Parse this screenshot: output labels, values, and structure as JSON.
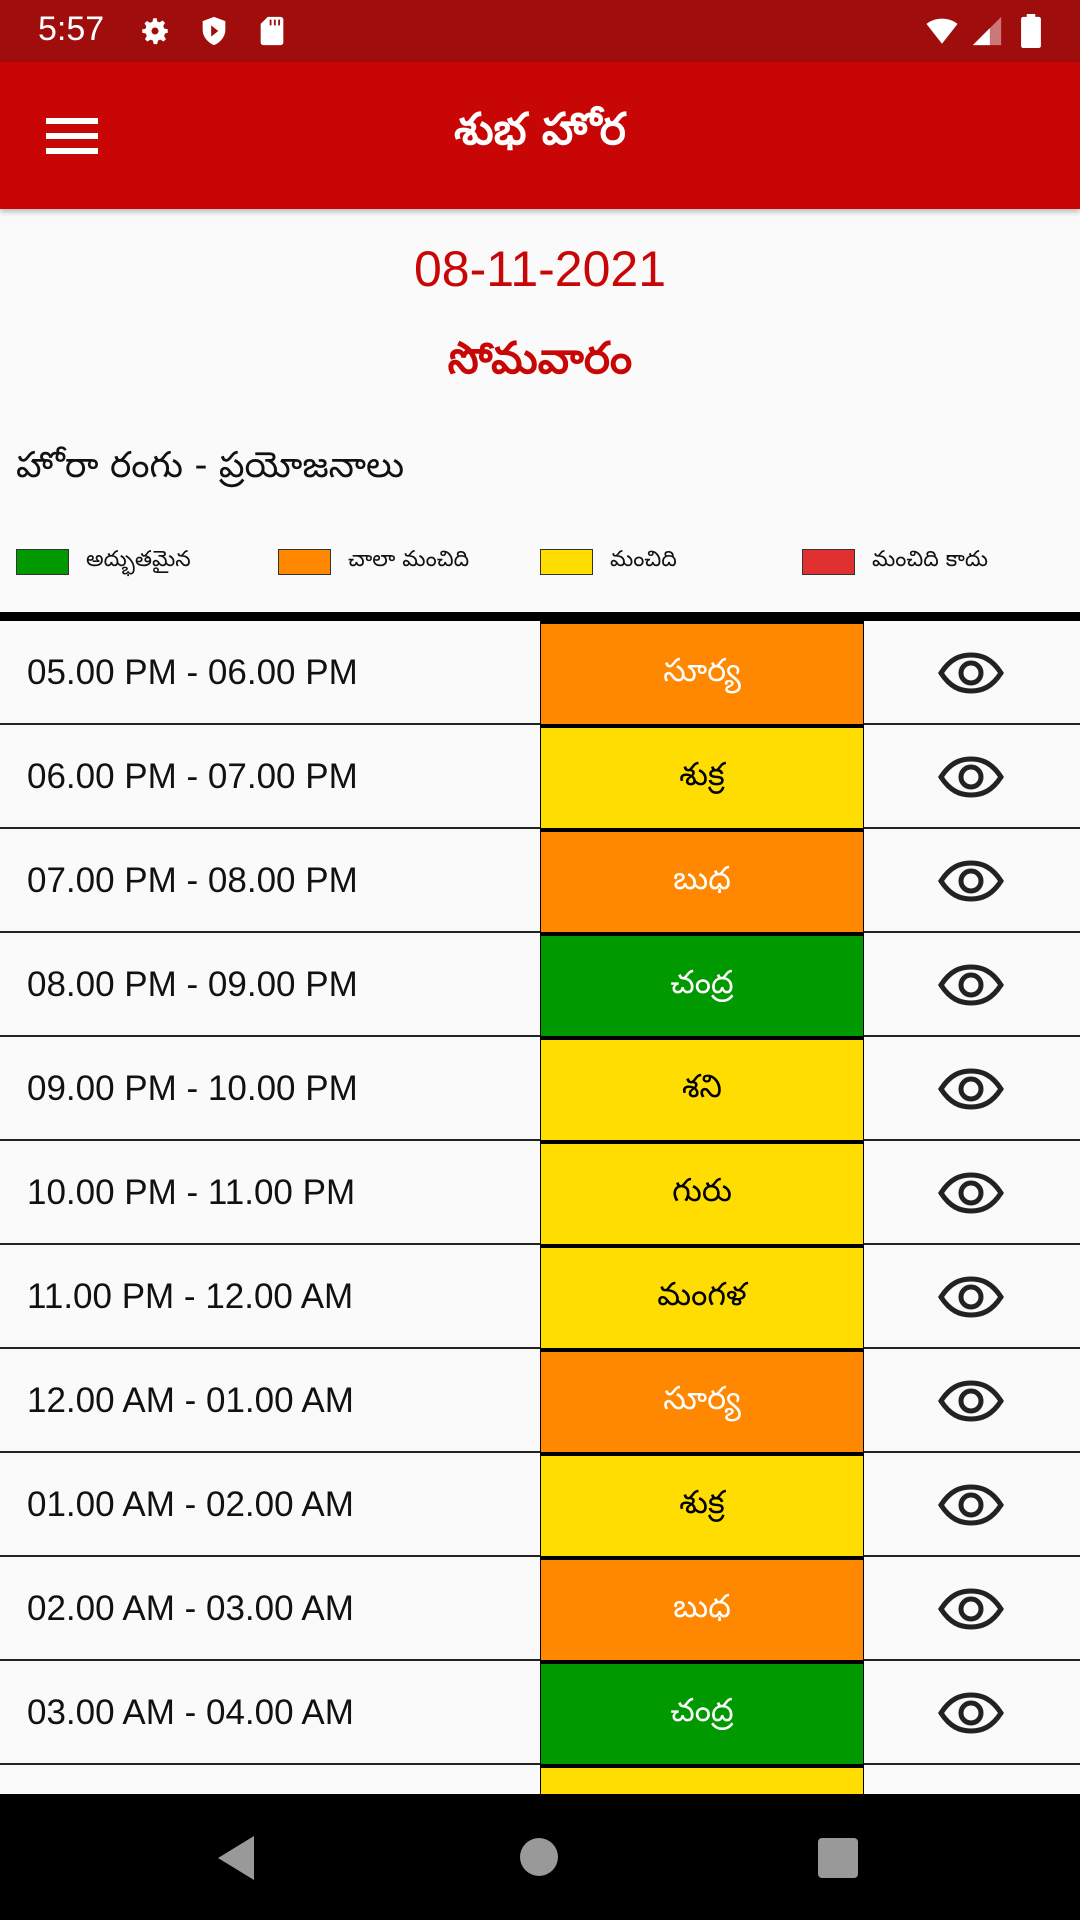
{
  "status_bar": {
    "time": "5:57",
    "icons": [
      "settings-icon",
      "shield-play-icon",
      "sd-card-icon",
      "wifi-icon",
      "signal-icon",
      "battery-icon"
    ]
  },
  "toolbar": {
    "title": "శుభ హోర",
    "menu_icon": "hamburger-menu-icon"
  },
  "date": "08-11-2021",
  "weekday": "సోమవారం",
  "legend": {
    "heading": "హోరా రంగు - ప్రయోజనాలు",
    "items": [
      {
        "label": "అద్భుతమైన",
        "color": "#009900"
      },
      {
        "label": "చాలా మంచిది",
        "color": "#ff8800"
      },
      {
        "label": "మంచిది",
        "color": "#ffdd00"
      },
      {
        "label": "మంచిది కాదు",
        "color": "#e03030"
      }
    ]
  },
  "rows": [
    {
      "time": "05.00 PM - 06.00 PM",
      "hora": "సూర్య",
      "color": "#ff8800",
      "text_color": "#ffffff"
    },
    {
      "time": "06.00 PM - 07.00 PM",
      "hora": "శుక్ర",
      "color": "#ffdd00",
      "text_color": "#000000"
    },
    {
      "time": "07.00 PM - 08.00 PM",
      "hora": "బుధ",
      "color": "#ff8800",
      "text_color": "#ffffff"
    },
    {
      "time": "08.00 PM - 09.00 PM",
      "hora": "చంద్ర",
      "color": "#009900",
      "text_color": "#ffffff"
    },
    {
      "time": "09.00 PM - 10.00 PM",
      "hora": "శని",
      "color": "#ffdd00",
      "text_color": "#000000"
    },
    {
      "time": "10.00 PM - 11.00 PM",
      "hora": "గురు",
      "color": "#ffdd00",
      "text_color": "#000000"
    },
    {
      "time": "11.00 PM - 12.00 AM",
      "hora": "మంగళ",
      "color": "#ffdd00",
      "text_color": "#000000"
    },
    {
      "time": "12.00 AM - 01.00 AM",
      "hora": "సూర్య",
      "color": "#ff8800",
      "text_color": "#ffffff"
    },
    {
      "time": "01.00 AM - 02.00 AM",
      "hora": "శుక్ర",
      "color": "#ffdd00",
      "text_color": "#000000"
    },
    {
      "time": "02.00 AM - 03.00 AM",
      "hora": "బుధ",
      "color": "#ff8800",
      "text_color": "#ffffff"
    },
    {
      "time": "03.00 AM - 04.00 AM",
      "hora": "చంద్ర",
      "color": "#009900",
      "text_color": "#ffffff"
    },
    {
      "time": "",
      "hora": "",
      "color": "#ffdd00",
      "text_color": "#000000"
    }
  ],
  "nav_bar": {
    "icons": [
      "back-icon",
      "home-icon",
      "recents-icon"
    ]
  }
}
